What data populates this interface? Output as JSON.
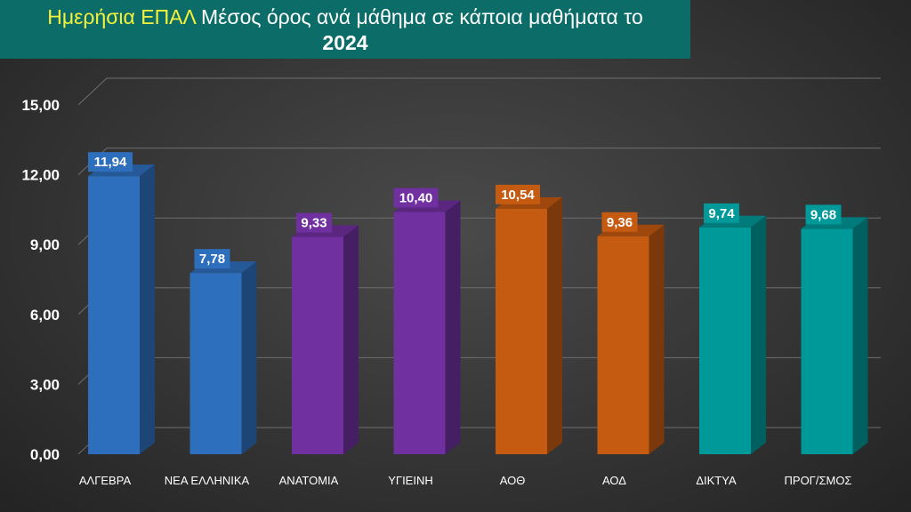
{
  "chart_data": {
    "type": "bar",
    "title_highlight": "Ημερήσια ΕΠΑΛ",
    "title_rest": " Μέσος όρος ανά μάθημα σε κάποια μαθήματα το",
    "title_line2": "2024",
    "categories": [
      "ΑΛΓΕΒΡΑ",
      "ΝΕΑ ΕΛΛΗΝΙΚΑ",
      "ΑΝΑΤΟΜΙΑ",
      "ΥΓΙΕΙΝΗ",
      "ΑΟΘ",
      "ΑΟΔ",
      "ΔΙΚΤΥΑ",
      "ΠΡΟΓ/ΣΜΟΣ"
    ],
    "values": [
      11.94,
      7.78,
      9.33,
      10.4,
      10.54,
      9.36,
      9.74,
      9.68
    ],
    "value_labels": [
      "11,94",
      "7,78",
      "9,33",
      "10,40",
      "10,54",
      "9,36",
      "9,74",
      "9,68"
    ],
    "yticks": [
      0,
      3,
      6,
      9,
      12,
      15
    ],
    "ytick_labels": [
      "0,00",
      "3,00",
      "6,00",
      "9,00",
      "12,00",
      "15,00"
    ],
    "ylim": [
      0,
      15
    ],
    "grid": true,
    "legend": "none",
    "bar_colors": [
      "#2e6fbd",
      "#2e6fbd",
      "#7030a0",
      "#7030a0",
      "#c55a11",
      "#c55a11",
      "#009999",
      "#009999"
    ],
    "accent_title_bg": "#0c6d68",
    "accent_title_highlight": "#f4f23a"
  }
}
